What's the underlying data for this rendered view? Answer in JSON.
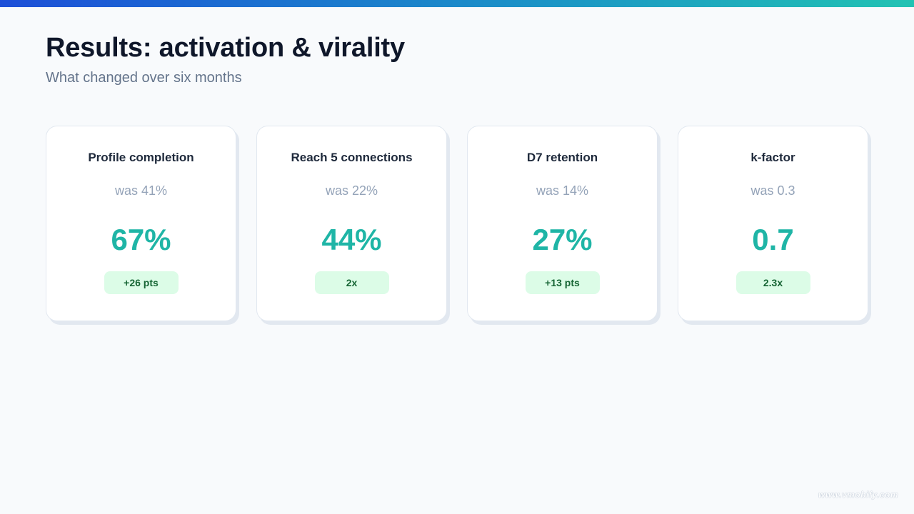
{
  "slide": {
    "title": "Results: activation & virality",
    "subtitle": "What changed over six months",
    "accent_gradient": [
      "#1d4fd8",
      "#1b8fc8",
      "#22c3b3"
    ],
    "value_color": "#1fb5a6",
    "delta_bg_color": "#dcfce7",
    "delta_text_color": "#166534"
  },
  "cards": [
    {
      "label": "Profile completion",
      "was": "was 41%",
      "value": "67%",
      "delta": "+26 pts"
    },
    {
      "label": "Reach 5 connections",
      "was": "was 22%",
      "value": "44%",
      "delta": "2x"
    },
    {
      "label": "D7 retention",
      "was": "was 14%",
      "value": "27%",
      "delta": "+13 pts"
    },
    {
      "label": "k-factor",
      "was": "was 0.3",
      "value": "0.7",
      "delta": "2.3x"
    }
  ],
  "watermark": "www.vmobify.com"
}
